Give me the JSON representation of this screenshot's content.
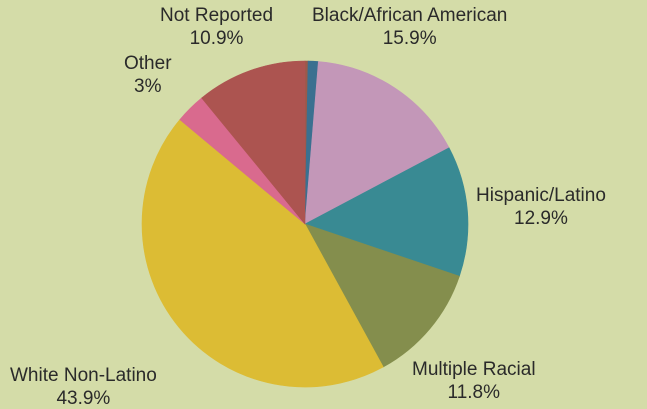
{
  "chart_data": {
    "type": "pie",
    "title": "",
    "start_angle_deg": 0,
    "direction": "clockwise",
    "slices": [
      {
        "label": "",
        "value": 0.3,
        "display": "",
        "color": "#9a5a4a"
      },
      {
        "label": "",
        "value": 1.0,
        "display": "",
        "color": "#3a7090"
      },
      {
        "label": "Black/African American",
        "value": 15.9,
        "display": "15.9%",
        "color": "#c397b8"
      },
      {
        "label": "Hispanic/Latino",
        "value": 12.9,
        "display": "12.9%",
        "color": "#398a93"
      },
      {
        "label": "Multiple Racial",
        "value": 11.8,
        "display": "11.8%",
        "color": "#848e4d"
      },
      {
        "label": "White Non-Latino",
        "value": 43.9,
        "display": "43.9%",
        "color": "#dcbc34"
      },
      {
        "label": "Other",
        "value": 3,
        "display": "3%",
        "color": "#d96a8e"
      },
      {
        "label": "Not Reported",
        "value": 10.9,
        "display": "10.9%",
        "color": "#ac5450"
      }
    ]
  },
  "colors": {
    "background": "#d4dca8",
    "text": "#2a2a2a"
  }
}
